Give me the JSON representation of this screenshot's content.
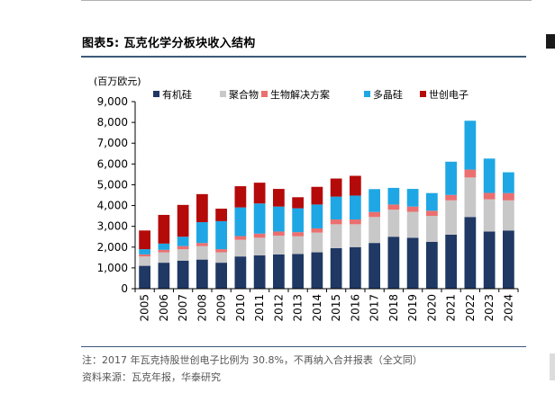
{
  "header": {
    "title": "图表5:  瓦克化学分板块收入结构"
  },
  "footer": {
    "note": "注：2017 年瓦克持股世创电子比例为 30.8%，不再纳入合并报表（全文同）",
    "source": "资料来源：瓦克年报，华泰研究"
  },
  "colors": {
    "silicones": "#1f3864",
    "polymers": "#c8c8c8",
    "biosolutions": "#ec6f6f",
    "polysilicon": "#1ea7e4",
    "siltronic": "#b50a0a"
  },
  "chart_data": {
    "type": "bar",
    "stacked": true,
    "title": "",
    "unit_label": "(百万欧元)",
    "xlabel": "",
    "ylabel": "(百万欧元)",
    "ylim": [
      0,
      9000
    ],
    "yticks": [
      "0",
      "1,000",
      "2,000",
      "3,000",
      "4,000",
      "5,000",
      "6,000",
      "7,000",
      "8,000",
      "9,000"
    ],
    "ytick_values": [
      0,
      1000,
      2000,
      3000,
      4000,
      5000,
      6000,
      7000,
      8000,
      9000
    ],
    "legend_position": "top",
    "categories": [
      "2005",
      "2006",
      "2007",
      "2008",
      "2009",
      "2010",
      "2011",
      "2012",
      "2013",
      "2014",
      "2015",
      "2016",
      "2017",
      "2018",
      "2019",
      "2020",
      "2021",
      "2022",
      "2023",
      "2024"
    ],
    "series": [
      {
        "name": "有机硅",
        "color_key": "silicones",
        "values": [
          1100,
          1250,
          1350,
          1400,
          1250,
          1550,
          1600,
          1650,
          1670,
          1750,
          1950,
          2000,
          2200,
          2500,
          2450,
          2250,
          2600,
          3450,
          2750,
          2800
        ]
      },
      {
        "name": "聚合物",
        "color_key": "polymers",
        "values": [
          450,
          500,
          550,
          650,
          500,
          800,
          850,
          900,
          850,
          950,
          1150,
          1100,
          1250,
          1300,
          1250,
          1250,
          1650,
          1900,
          1550,
          1450
        ]
      },
      {
        "name": "生物解决方案",
        "color_key": "biosolutions",
        "values": [
          100,
          120,
          150,
          150,
          150,
          180,
          200,
          200,
          200,
          200,
          230,
          230,
          240,
          250,
          250,
          250,
          260,
          380,
          310,
          350
        ]
      },
      {
        "name": "多晶硅",
        "color_key": "polysilicon",
        "values": [
          250,
          300,
          450,
          1000,
          1350,
          1380,
          1450,
          1200,
          1150,
          1150,
          1100,
          1150,
          1100,
          800,
          850,
          850,
          1600,
          2350,
          1650,
          1000
        ]
      },
      {
        "name": "世创电子",
        "color_key": "siltronic",
        "values": [
          900,
          1380,
          1530,
          1350,
          600,
          1020,
          1000,
          850,
          530,
          850,
          870,
          950,
          0,
          0,
          0,
          0,
          0,
          0,
          0,
          0
        ]
      }
    ]
  }
}
